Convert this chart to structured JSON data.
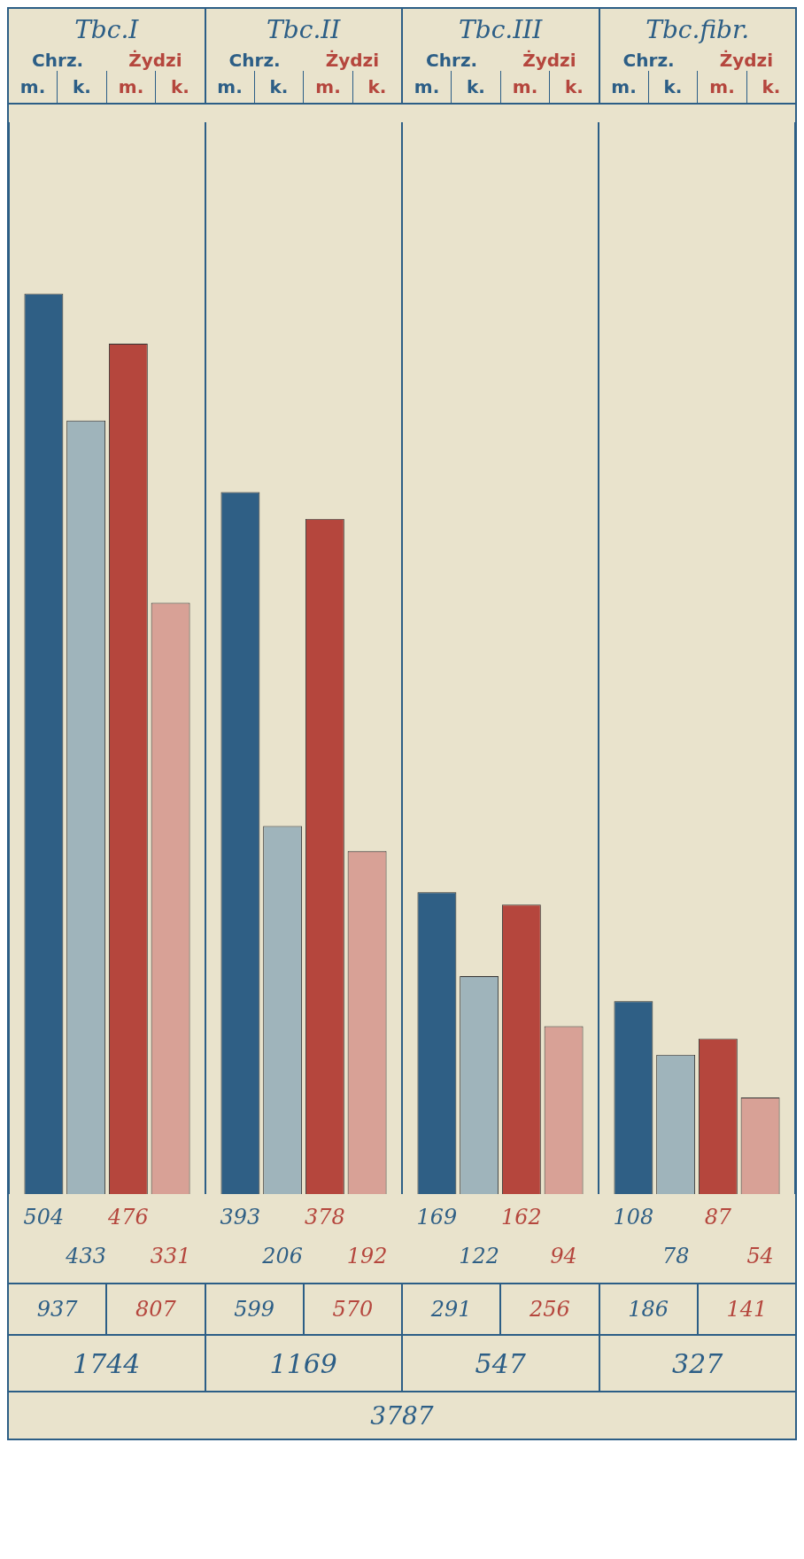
{
  "chart_data": {
    "type": "bar",
    "categories": [
      "Tbc.I",
      "Tbc.II",
      "Tbc.III",
      "Tbc.fibr."
    ],
    "series": [
      {
        "color": "#2f5f85",
        "values": [
          504,
          393,
          169,
          108
        ]
      },
      {
        "color": "#9fb4bb",
        "values": [
          433,
          206,
          122,
          78
        ]
      },
      {
        "color": "#b5463d",
        "values": [
          476,
          378,
          162,
          87
        ]
      },
      {
        "color": "#d8a196",
        "values": [
          331,
          192,
          94,
          54
        ]
      }
    ],
    "data_labels": true,
    "grid": "x",
    "tick_labels": false,
    "annotations": [
      "Chrz.",
      "Żydzi",
      "m.",
      "k.",
      "937",
      "807",
      "599",
      "570",
      "291",
      "256",
      "186",
      "141",
      "1744",
      "1169",
      "547",
      "327",
      "3787"
    ]
  }
}
